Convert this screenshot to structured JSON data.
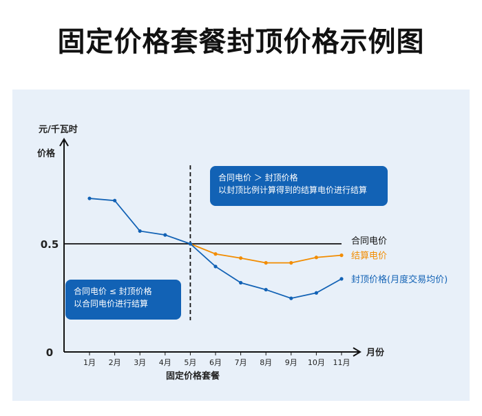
{
  "title": "固定价格套餐封顶价格示例图",
  "callouts": {
    "top": {
      "line1": "合同电价  ＞  封顶价格",
      "line2": "以封顶比例计算得到的结算电价进行结算"
    },
    "bottom": {
      "line1": "合同电价  ≤  封顶价格",
      "line2": "以合同电价进行结算"
    }
  },
  "colors": {
    "contract": "#111111",
    "settlement": "#f28c00",
    "cap": "#1262b5",
    "callout_bg": "#1262b5",
    "panel_bg": "#e8f0f9"
  },
  "chart_data": {
    "type": "line",
    "xlabel": "固定价格套餐",
    "x_axis_name": "月份",
    "y_axis_unit": "元/千瓦时",
    "ylabel": "价格",
    "categories": [
      "1月",
      "2月",
      "3月",
      "4月",
      "5月",
      "6月",
      "7月",
      "8月",
      "9月",
      "10月",
      "11月"
    ],
    "y_ticks": [
      "0.5",
      "0"
    ],
    "ylim": [
      0,
      1
    ],
    "divider_after": "5月",
    "series": [
      {
        "name": "合同电价",
        "color": "#111111",
        "markers": false,
        "values": [
          0.5,
          0.5,
          0.5,
          0.5,
          0.5,
          0.5,
          0.5,
          0.5,
          0.5,
          0.5,
          0.5
        ]
      },
      {
        "name": "结算电价",
        "color": "#f28c00",
        "markers": true,
        "values": [
          null,
          null,
          null,
          null,
          0.5,
          0.453,
          0.434,
          0.412,
          0.412,
          0.437,
          0.447
        ]
      },
      {
        "name": "封顶价格(月度交易均价)",
        "color": "#1262b5",
        "markers": true,
        "values": [
          0.71,
          0.7,
          0.559,
          0.541,
          0.5,
          0.395,
          0.32,
          0.288,
          0.248,
          0.273,
          0.338
        ]
      }
    ],
    "line_labels": [
      "合同电价",
      "结算电价",
      "封顶价格(月度交易均价)"
    ]
  }
}
